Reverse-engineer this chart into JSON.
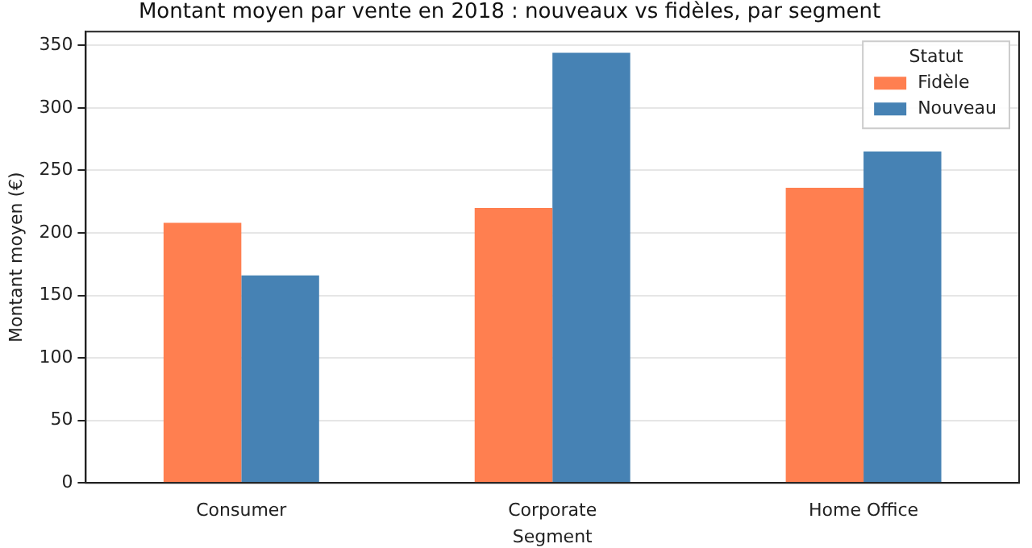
{
  "chart_data": {
    "type": "bar",
    "title": "Montant moyen par vente en 2018 : nouveaux vs fidèles, par segment",
    "xlabel": "Segment",
    "ylabel": "Montant moyen (€)",
    "legend_title": "Statut",
    "categories": [
      "Consumer",
      "Corporate",
      "Home Office"
    ],
    "series": [
      {
        "name": "Fidèle",
        "color": "#ff7f50",
        "values": [
          208,
          220,
          236
        ]
      },
      {
        "name": "Nouveau",
        "color": "#4682b4",
        "values": [
          166,
          344,
          265
        ]
      }
    ],
    "ylim": [
      0,
      361
    ],
    "yticks": [
      0,
      50,
      100,
      150,
      200,
      250,
      300,
      350
    ],
    "grid": "y",
    "legend": "top right"
  }
}
